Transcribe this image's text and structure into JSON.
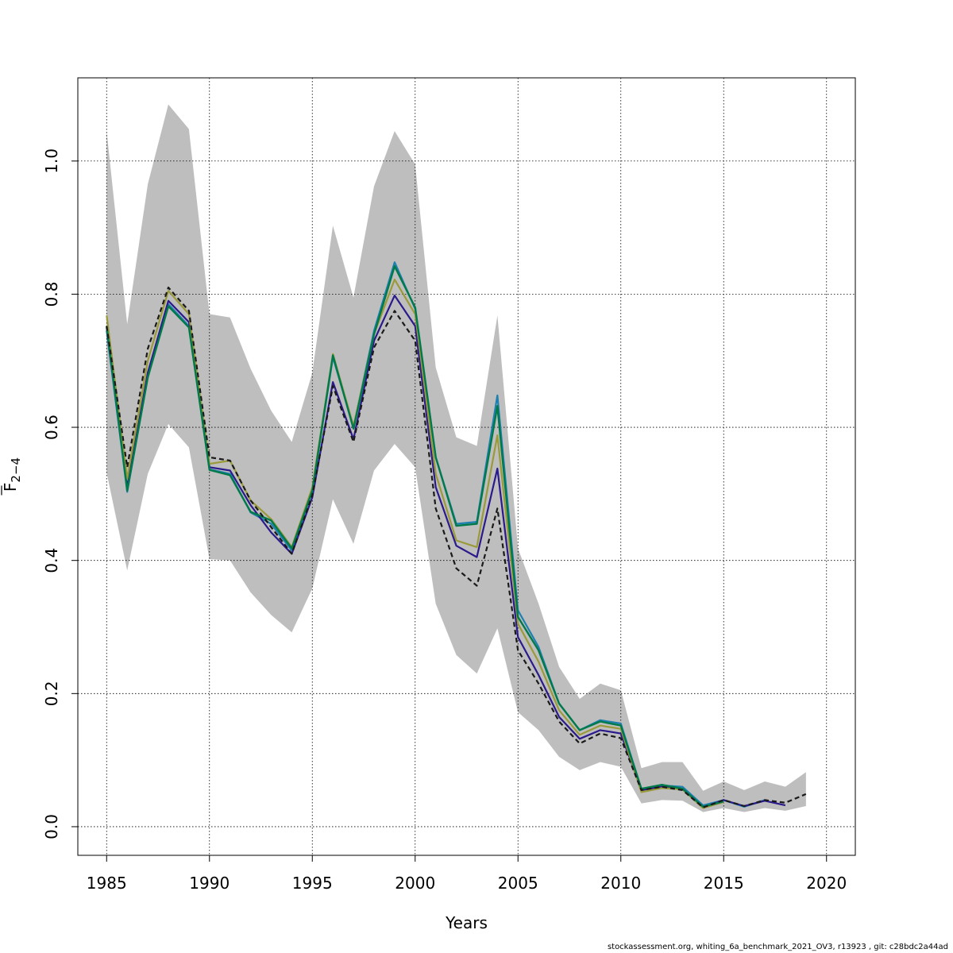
{
  "chart_data": {
    "type": "line",
    "xlabel": "Years",
    "ylabel": {
      "base": "F",
      "sub": "2−4"
    },
    "xlim": [
      1983.6,
      2021.4
    ],
    "ylim": [
      -0.043,
      1.125
    ],
    "x_ticks": [
      1985,
      1990,
      1995,
      2000,
      2005,
      2010,
      2015,
      2020
    ],
    "y_ticks": [
      0.0,
      0.2,
      0.4,
      0.6,
      0.8,
      1.0
    ],
    "y_tick_labels": [
      "0.0",
      "0.2",
      "0.4",
      "0.6",
      "0.8",
      "1.0"
    ],
    "grid": true,
    "confidence_band": {
      "color": "#bebebe",
      "x": [
        1985,
        1986,
        1987,
        1988,
        1989,
        1990,
        1991,
        1992,
        1993,
        1994,
        1995,
        1996,
        1997,
        1998,
        1999,
        2000,
        2001,
        2002,
        2003,
        2004,
        2005,
        2006,
        2007,
        2008,
        2009,
        2010,
        2011,
        2012,
        2013,
        2014,
        2015,
        2016,
        2017,
        2018,
        2019
      ],
      "upper": [
        1.045,
        0.755,
        0.965,
        1.085,
        1.048,
        0.77,
        0.765,
        0.688,
        0.625,
        0.578,
        0.682,
        0.903,
        0.795,
        0.962,
        1.045,
        0.995,
        0.69,
        0.585,
        0.572,
        0.768,
        0.418,
        0.335,
        0.24,
        0.192,
        0.215,
        0.205,
        0.088,
        0.097,
        0.097,
        0.054,
        0.068,
        0.055,
        0.068,
        0.06,
        0.082
      ],
      "lower": [
        0.532,
        0.385,
        0.53,
        0.605,
        0.57,
        0.402,
        0.4,
        0.352,
        0.318,
        0.292,
        0.358,
        0.492,
        0.425,
        0.535,
        0.575,
        0.54,
        0.335,
        0.258,
        0.23,
        0.298,
        0.172,
        0.145,
        0.105,
        0.085,
        0.097,
        0.09,
        0.035,
        0.04,
        0.039,
        0.022,
        0.028,
        0.022,
        0.028,
        0.024,
        0.031
      ]
    },
    "series": [
      {
        "color": "#1e7fb0",
        "dash": false,
        "width": 2.2,
        "x": [
          1985,
          1986,
          1987,
          1988,
          1989,
          1990,
          1991,
          1992,
          1993,
          1994,
          1995,
          1996,
          1997,
          1998,
          1999,
          2000,
          2001,
          2002,
          2003,
          2004,
          2005,
          2006,
          2007,
          2008,
          2009,
          2010,
          2011,
          2012,
          2013,
          2014,
          2015,
          2016,
          2017
        ],
        "values": [
          0.745,
          0.503,
          0.675,
          0.785,
          0.752,
          0.537,
          0.53,
          0.472,
          0.455,
          0.415,
          0.505,
          0.705,
          0.6,
          0.745,
          0.848,
          0.778,
          0.555,
          0.455,
          0.458,
          0.648,
          0.325,
          0.27,
          0.185,
          0.145,
          0.16,
          0.155,
          0.057,
          0.062,
          0.06,
          0.032,
          0.04,
          0.03,
          0.04
        ]
      },
      {
        "color": "#2a1a8c",
        "dash": false,
        "width": 2.2,
        "x": [
          1985,
          1986,
          1987,
          1988,
          1989,
          1990,
          1991,
          1992,
          1993,
          1994,
          1995,
          1996,
          1997,
          1998,
          1999,
          2000,
          2001,
          2002,
          2003,
          2004,
          2005,
          2006,
          2007,
          2008,
          2009,
          2010,
          2011,
          2012,
          2013,
          2014,
          2015,
          2016,
          2017,
          2018
        ],
        "values": [
          0.75,
          0.51,
          0.682,
          0.79,
          0.758,
          0.54,
          0.535,
          0.483,
          0.442,
          0.41,
          0.495,
          0.668,
          0.582,
          0.73,
          0.798,
          0.752,
          0.51,
          0.422,
          0.405,
          0.538,
          0.285,
          0.228,
          0.165,
          0.132,
          0.145,
          0.14,
          0.055,
          0.06,
          0.057,
          0.029,
          0.04,
          0.031,
          0.039,
          0.032
        ]
      },
      {
        "color": "#9a9a3a",
        "dash": false,
        "width": 2.2,
        "x": [
          1985,
          1986,
          1987,
          1988,
          1989,
          1990,
          1991,
          1992,
          1993,
          1994,
          1995,
          1996,
          1997,
          1998,
          1999,
          2000,
          2001,
          2002,
          2003,
          2004,
          2005,
          2006,
          2007,
          2008,
          2009,
          2010,
          2011,
          2012,
          2013,
          2014,
          2015
        ],
        "values": [
          0.768,
          0.523,
          0.7,
          0.805,
          0.77,
          0.545,
          0.55,
          0.49,
          0.462,
          0.42,
          0.51,
          0.71,
          0.602,
          0.74,
          0.822,
          0.77,
          0.53,
          0.43,
          0.42,
          0.588,
          0.305,
          0.248,
          0.175,
          0.138,
          0.152,
          0.147,
          0.052,
          0.058,
          0.056,
          0.028,
          0.037
        ]
      },
      {
        "color": "#007a4a",
        "dash": false,
        "width": 2.4,
        "x": [
          1985,
          1986,
          1987,
          1988,
          1989,
          1990,
          1991,
          1992,
          1993,
          1994,
          1995,
          1996,
          1997,
          1998,
          1999,
          2000,
          2001,
          2002,
          2003,
          2004,
          2005,
          2006,
          2007,
          2008,
          2009,
          2010,
          2011,
          2012,
          2013,
          2014,
          2015
        ],
        "values": [
          0.752,
          0.505,
          0.675,
          0.782,
          0.75,
          0.536,
          0.528,
          0.473,
          0.46,
          0.418,
          0.505,
          0.708,
          0.598,
          0.74,
          0.842,
          0.78,
          0.555,
          0.452,
          0.455,
          0.632,
          0.315,
          0.265,
          0.185,
          0.145,
          0.158,
          0.152,
          0.057,
          0.063,
          0.057,
          0.03,
          0.038
        ]
      },
      {
        "color": "#1a1a1a",
        "dash": true,
        "width": 2.2,
        "x": [
          1985,
          1986,
          1987,
          1988,
          1989,
          1990,
          1991,
          1992,
          1993,
          1994,
          1995,
          1996,
          1997,
          1998,
          1999,
          2000,
          2001,
          2002,
          2003,
          2004,
          2005,
          2006,
          2007,
          2008,
          2009,
          2010,
          2011,
          2012,
          2013,
          2014,
          2015,
          2016,
          2017,
          2018,
          2019
        ],
        "values": [
          0.752,
          0.54,
          0.718,
          0.81,
          0.775,
          0.555,
          0.55,
          0.49,
          0.45,
          0.41,
          0.498,
          0.662,
          0.578,
          0.72,
          0.775,
          0.73,
          0.478,
          0.388,
          0.362,
          0.478,
          0.265,
          0.215,
          0.158,
          0.125,
          0.14,
          0.133,
          0.055,
          0.06,
          0.055,
          0.029,
          0.04,
          0.031,
          0.04,
          0.036,
          0.049
        ]
      }
    ]
  },
  "footer": "stockassessment.org, whiting_6a_benchmark_2021_OV3, r13923 , git: c28bdc2a44ad"
}
